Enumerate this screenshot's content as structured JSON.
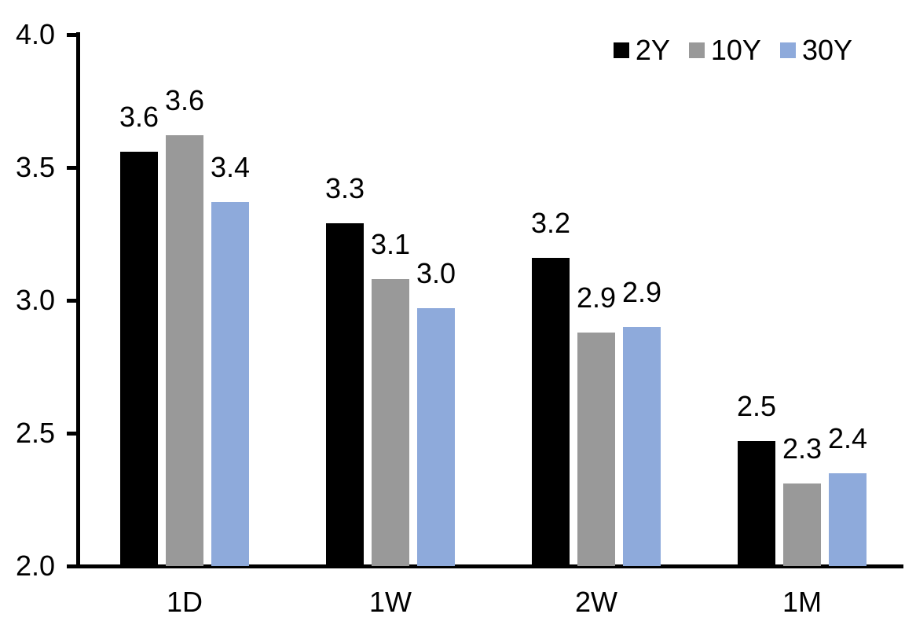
{
  "chart_data": {
    "type": "bar",
    "title": "",
    "categories": [
      "1D",
      "1W",
      "2W",
      "1M"
    ],
    "series": [
      {
        "name": "2Y",
        "color": "#000000",
        "values": [
          3.56,
          3.29,
          3.16,
          2.47
        ],
        "labels": [
          "3.6",
          "3.3",
          "3.2",
          "2.5"
        ]
      },
      {
        "name": "10Y",
        "color": "#999999",
        "values": [
          3.62,
          3.08,
          2.88,
          2.31
        ],
        "labels": [
          "3.6",
          "3.1",
          "2.9",
          "2.3"
        ]
      },
      {
        "name": "30Y",
        "color": "#8EAADB",
        "values": [
          3.37,
          2.97,
          2.9,
          2.35
        ],
        "labels": [
          "3.4",
          "3.0",
          "2.9",
          "2.4"
        ]
      }
    ],
    "y_axis": {
      "min": 2.0,
      "max": 4.0,
      "tick_step": 0.5,
      "tick_labels": [
        "4.0",
        "3.5",
        "3.0",
        "2.5",
        "2.0"
      ]
    },
    "x_axis": {
      "tick_labels": [
        "1D",
        "1W",
        "2W",
        "1M"
      ]
    },
    "legend": {
      "position": "top-right",
      "entries": [
        "2Y",
        "10Y",
        "30Y"
      ]
    },
    "grid": false,
    "axis_color": "#000000",
    "background_color": "#ffffff"
  }
}
